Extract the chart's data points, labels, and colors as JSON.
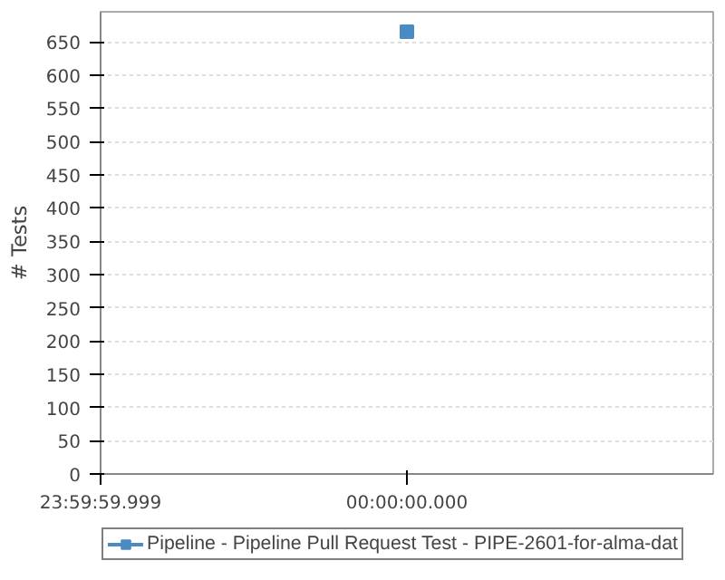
{
  "chart_data": {
    "type": "line",
    "ylabel": "# Tests",
    "categories": [
      "23:59:59.999",
      "00:00:00.000",
      null
    ],
    "series": [
      {
        "name": "Pipeline - Pipeline Pull Request Test - PIPE-2601-for-alma-dat",
        "color": "#4a8bc4",
        "values": [
          null,
          665,
          null
        ]
      }
    ],
    "ylim": [
      0,
      695
    ],
    "yticks": [
      0,
      50,
      100,
      150,
      200,
      250,
      300,
      350,
      400,
      450,
      500,
      550,
      600,
      650
    ],
    "grid": "y",
    "legend": "bottom",
    "marker": "square",
    "line_style": "solid"
  }
}
